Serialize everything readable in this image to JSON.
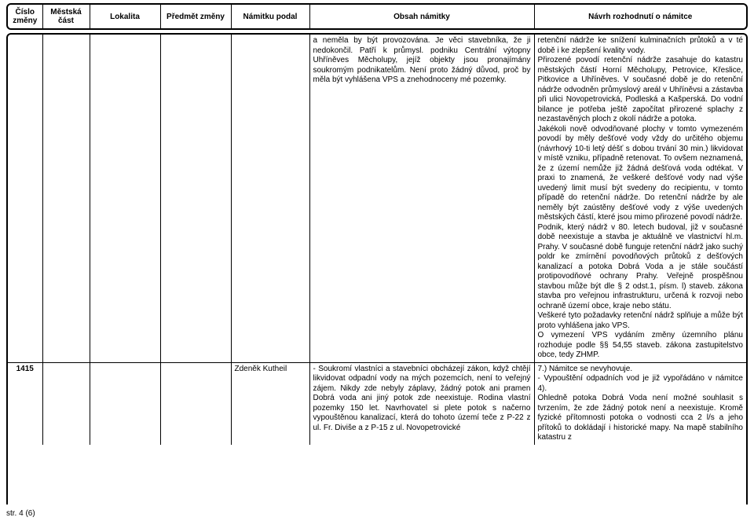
{
  "columns": {
    "cislo": "Číslo\nzměny",
    "mest": "Městská\nčást",
    "lok": "Lokalita",
    "pred": "Předmět změny",
    "namp": "Námitku podal",
    "obsah": "Obsah námitky",
    "navrh": "Návrh rozhodnutí o námitce"
  },
  "row1": {
    "obsah": "a neměla by být provozována. Je věci stavebníka, že ji nedokončil. Patří k průmysl. podniku Centrální výtopny Uhříněves Měcholupy, jejíž objekty jsou pronajímány soukromým podnikatelům. Není proto žádný důvod, proč by měla být vyhlášena VPS a znehodnoceny mé pozemky.",
    "navrh": "retenční nádrže ke snížení kulminačních průtoků a v té době i ke zlepšení kvality vody.\nPřirozené povodí retenční nádrže zasahuje do katastru městských částí Horní Měcholupy, Petrovice, Křeslice, Pitkovice a Uhříněves. V současné době je do retenční nádrže odvodněn průmyslový areál v Uhříněvsi a zástavba při ulici Novopetrovická, Podleská a Kašperská. Do vodní bilance je potřeba ještě započítat přirozené splachy z nezastavěných ploch z okolí nádrže a potoka.\nJakékoli nově odvodňované plochy v tomto vymezeném povodí by měly dešťové vody vždy do určitého objemu (návrhový 10-ti letý déšť s dobou trvání 30 min.) likvidovat v místě vzniku, případně retenovat. To ovšem neznamená, že z území nemůže již žádná dešťová voda odtékat. V praxi to znamená, že veškeré dešťové vody nad výše uvedený limit musí být svedeny do recipientu, v tomto případě do retenční nádrže. Do retenční nádrže by ale neměly být zaústěny dešťové vody z výše uvedených městských částí, které jsou mimo přirozené povodí nádrže.\nPodnik, který nádrž v 80. letech budoval, již v současné době neexistuje a stavba je aktuálně ve vlastnictví hl.m. Prahy. V současné době funguje retenční nádrž jako suchý poldr ke zmírnění povodňových průtoků z dešťových kanalizací a potoka Dobrá Voda a je stále součástí protipovodňové ochrany Prahy. Veřejně prospěšnou stavbou může být dle § 2  odst.1, písm. l) staveb. zákona stavba pro veřejnou infrastrukturu, určená k rozvoji nebo ochraně území obce, kraje nebo státu.\nVeškeré tyto požadavky retenční nádrž splňuje a může být proto vyhlášena jako VPS.\nO vymezení VPS vydáním změny územního plánu rozhoduje podle §§ 54,55 staveb. zákona zastupitelstvo obce, tedy ZHMP."
  },
  "row2": {
    "cislo": "1415",
    "namp": "Zdeněk Kutheil",
    "obsah": "- Soukromí vlastníci a stavebníci obcházejí zákon, když chtějí likvidovat odpadní vody na mých pozemcích, není to veřejný zájem. Nikdy zde nebyly záplavy, žádný potok ani pramen Dobrá voda ani jiný potok zde neexistuje. Rodina vlastní pozemky 150 let. Navrhovatel si plete potok s načerno vypouštěnou kanalizací, která do tohoto území teče z P-22 z ul. Fr. Diviše a z P-15 z ul. Novopetrovické",
    "navrh": "7.) Námitce se nevyhovuje.\n- Vypouštění odpadních vod je již vypořádáno v námitce 4).\nOhledně potoka Dobrá Voda není možné souhlasit s tvrzením, že zde žádný potok není a neexistuje. Kromě fyzické přítomnosti potoka o vodnosti cca 2 l/s a jeho přítoků to dokládají i historické mapy. Na mapě stabilního katastru z"
  },
  "footer": "str. 4 (6)"
}
